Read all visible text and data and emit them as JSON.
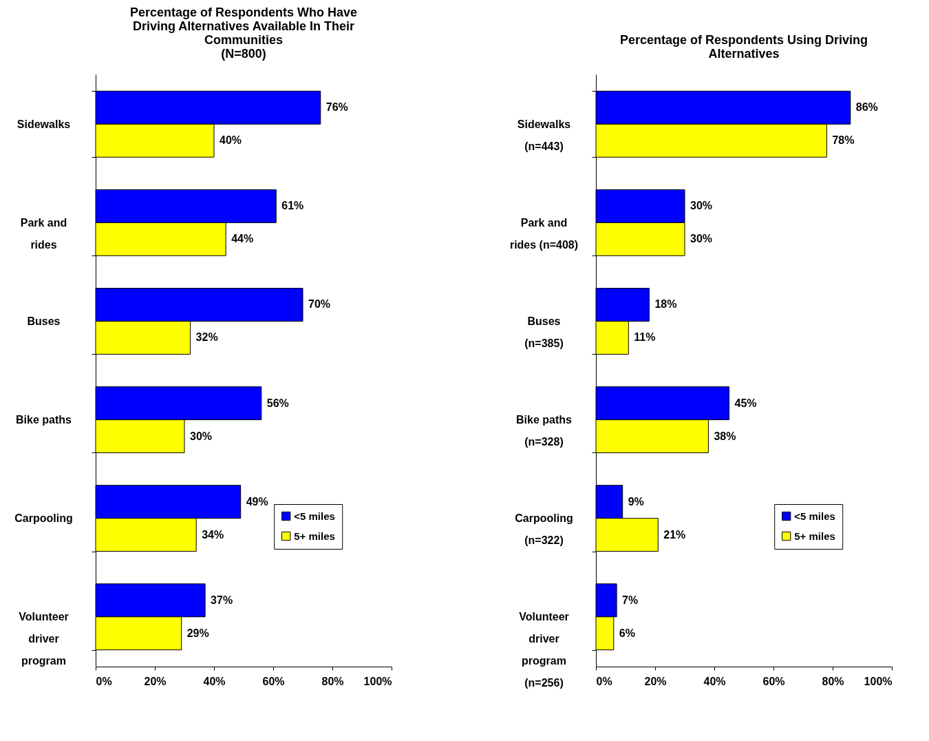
{
  "chart_data": [
    {
      "type": "bar",
      "orientation": "horizontal",
      "title": "Percentage of Respondents Who Have\nDriving Alternatives Available In Their\nCommunities\n(N=800)",
      "categories": [
        "Sidewalks",
        "Park and\nrides",
        "Buses",
        "Bike paths",
        "Carpooling",
        "Volunteer\ndriver\nprogram"
      ],
      "series": [
        {
          "name": "<5 miles",
          "color": "#0000ff",
          "values": [
            76,
            61,
            70,
            56,
            49,
            37
          ],
          "value_labels": [
            "76%",
            "61%",
            "70%",
            "56%",
            "49%",
            "37%"
          ]
        },
        {
          "name": "5+ miles",
          "color": "#ffff00",
          "values": [
            40,
            44,
            32,
            30,
            34,
            29
          ],
          "value_labels": [
            "40%",
            "44%",
            "32%",
            "30%",
            "34%",
            "29%"
          ]
        }
      ],
      "xlim": [
        0,
        100
      ],
      "xticks": [
        {
          "value": 0,
          "label": "0%"
        },
        {
          "value": 20,
          "label": "20%"
        },
        {
          "value": 40,
          "label": "40%"
        },
        {
          "value": 60,
          "label": "60%"
        },
        {
          "value": 80,
          "label": "80%"
        },
        {
          "value": 100,
          "label": "100%"
        }
      ],
      "grid": false,
      "legend": "bottom right"
    },
    {
      "type": "bar",
      "orientation": "horizontal",
      "title": "Percentage of Respondents Using Driving\nAlternatives",
      "categories": [
        "Sidewalks\n(n=443)",
        "Park and\nrides (n=408)",
        "Buses\n(n=385)",
        "Bike paths\n(n=328)",
        "Carpooling\n(n=322)",
        "Volunteer\ndriver\nprogram\n(n=256)"
      ],
      "series": [
        {
          "name": "<5 miles",
          "color": "#0000ff",
          "values": [
            86,
            30,
            18,
            45,
            9,
            7
          ],
          "value_labels": [
            "86%",
            "30%",
            "18%",
            "45%",
            "9%",
            "7%"
          ]
        },
        {
          "name": "5+ miles",
          "color": "#ffff00",
          "values": [
            78,
            30,
            11,
            38,
            21,
            6
          ],
          "value_labels": [
            "78%",
            "30%",
            "11%",
            "38%",
            "21%",
            "6%"
          ]
        }
      ],
      "xlim": [
        0,
        100
      ],
      "xticks": [
        {
          "value": 0,
          "label": "0%"
        },
        {
          "value": 20,
          "label": "20%"
        },
        {
          "value": 40,
          "label": "40%"
        },
        {
          "value": 60,
          "label": "60%"
        },
        {
          "value": 80,
          "label": "80%"
        },
        {
          "value": 100,
          "label": "100%"
        }
      ],
      "grid": false,
      "legend": "bottom right"
    }
  ]
}
